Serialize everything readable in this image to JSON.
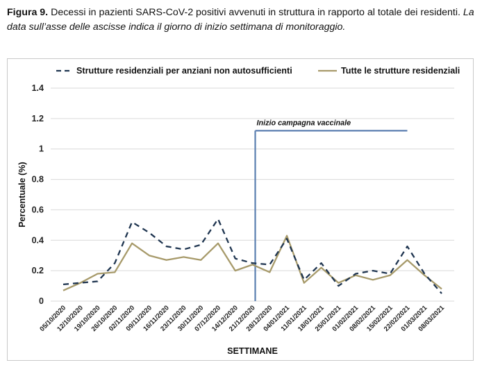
{
  "caption": {
    "label": "Figura 9.",
    "text": " Decessi in pazienti SARS-CoV-2 positivi avvenuti in struttura in rapporto al totale dei residenti. ",
    "italic": "La data sull’asse delle ascisse indica il giorno di inizio settimana di monitoraggio."
  },
  "chart_data": {
    "type": "line",
    "title": "",
    "xlabel": "SETTIMANE",
    "ylabel": "Percentuale (%)",
    "ylim": [
      0,
      1.4
    ],
    "yticks": [
      "0",
      "0.2",
      "0.4",
      "0.6",
      "0.8",
      "1",
      "1.2",
      "1.4"
    ],
    "grid": true,
    "legend_position": "top",
    "categories": [
      "05/10/2020",
      "12/10/2020",
      "19/10/2020",
      "26/10/2020",
      "02/11/2020",
      "09/11/2020",
      "16/11/2020",
      "23/11/2020",
      "30/11/2020",
      "07/12/2020",
      "14/12/2020",
      "21/12/2020",
      "28/12/2020",
      "04/01/2021",
      "11/01/2021",
      "18/01/2021",
      "25/01/2021",
      "01/02/2021",
      "08/02/2021",
      "15/02/2021",
      "22/02/2021",
      "01/03/2021",
      "08/03/2021"
    ],
    "series": [
      {
        "name": "Strutture residenziali per anziani non autosufficienti",
        "style": "dashed",
        "color": "#1f3550",
        "values": [
          0.11,
          0.12,
          0.13,
          0.25,
          0.52,
          0.45,
          0.36,
          0.34,
          0.37,
          0.54,
          0.28,
          0.25,
          0.24,
          0.41,
          0.14,
          0.25,
          0.1,
          0.18,
          0.2,
          0.18,
          0.36,
          0.18,
          0.05
        ]
      },
      {
        "name": "Tutte le strutture residenziali",
        "style": "solid",
        "color": "#a79a6a",
        "values": [
          0.07,
          0.12,
          0.18,
          0.19,
          0.38,
          0.3,
          0.27,
          0.29,
          0.27,
          0.38,
          0.2,
          0.24,
          0.19,
          0.43,
          0.12,
          0.22,
          0.12,
          0.17,
          0.14,
          0.17,
          0.27,
          0.17,
          0.08
        ]
      }
    ],
    "annotation": {
      "text": "Inizio campagna vaccinale",
      "at_category": "21/12/2020",
      "extends_to_category": "22/02/2021",
      "y": 1.12,
      "color": "#5b7fb0"
    }
  }
}
